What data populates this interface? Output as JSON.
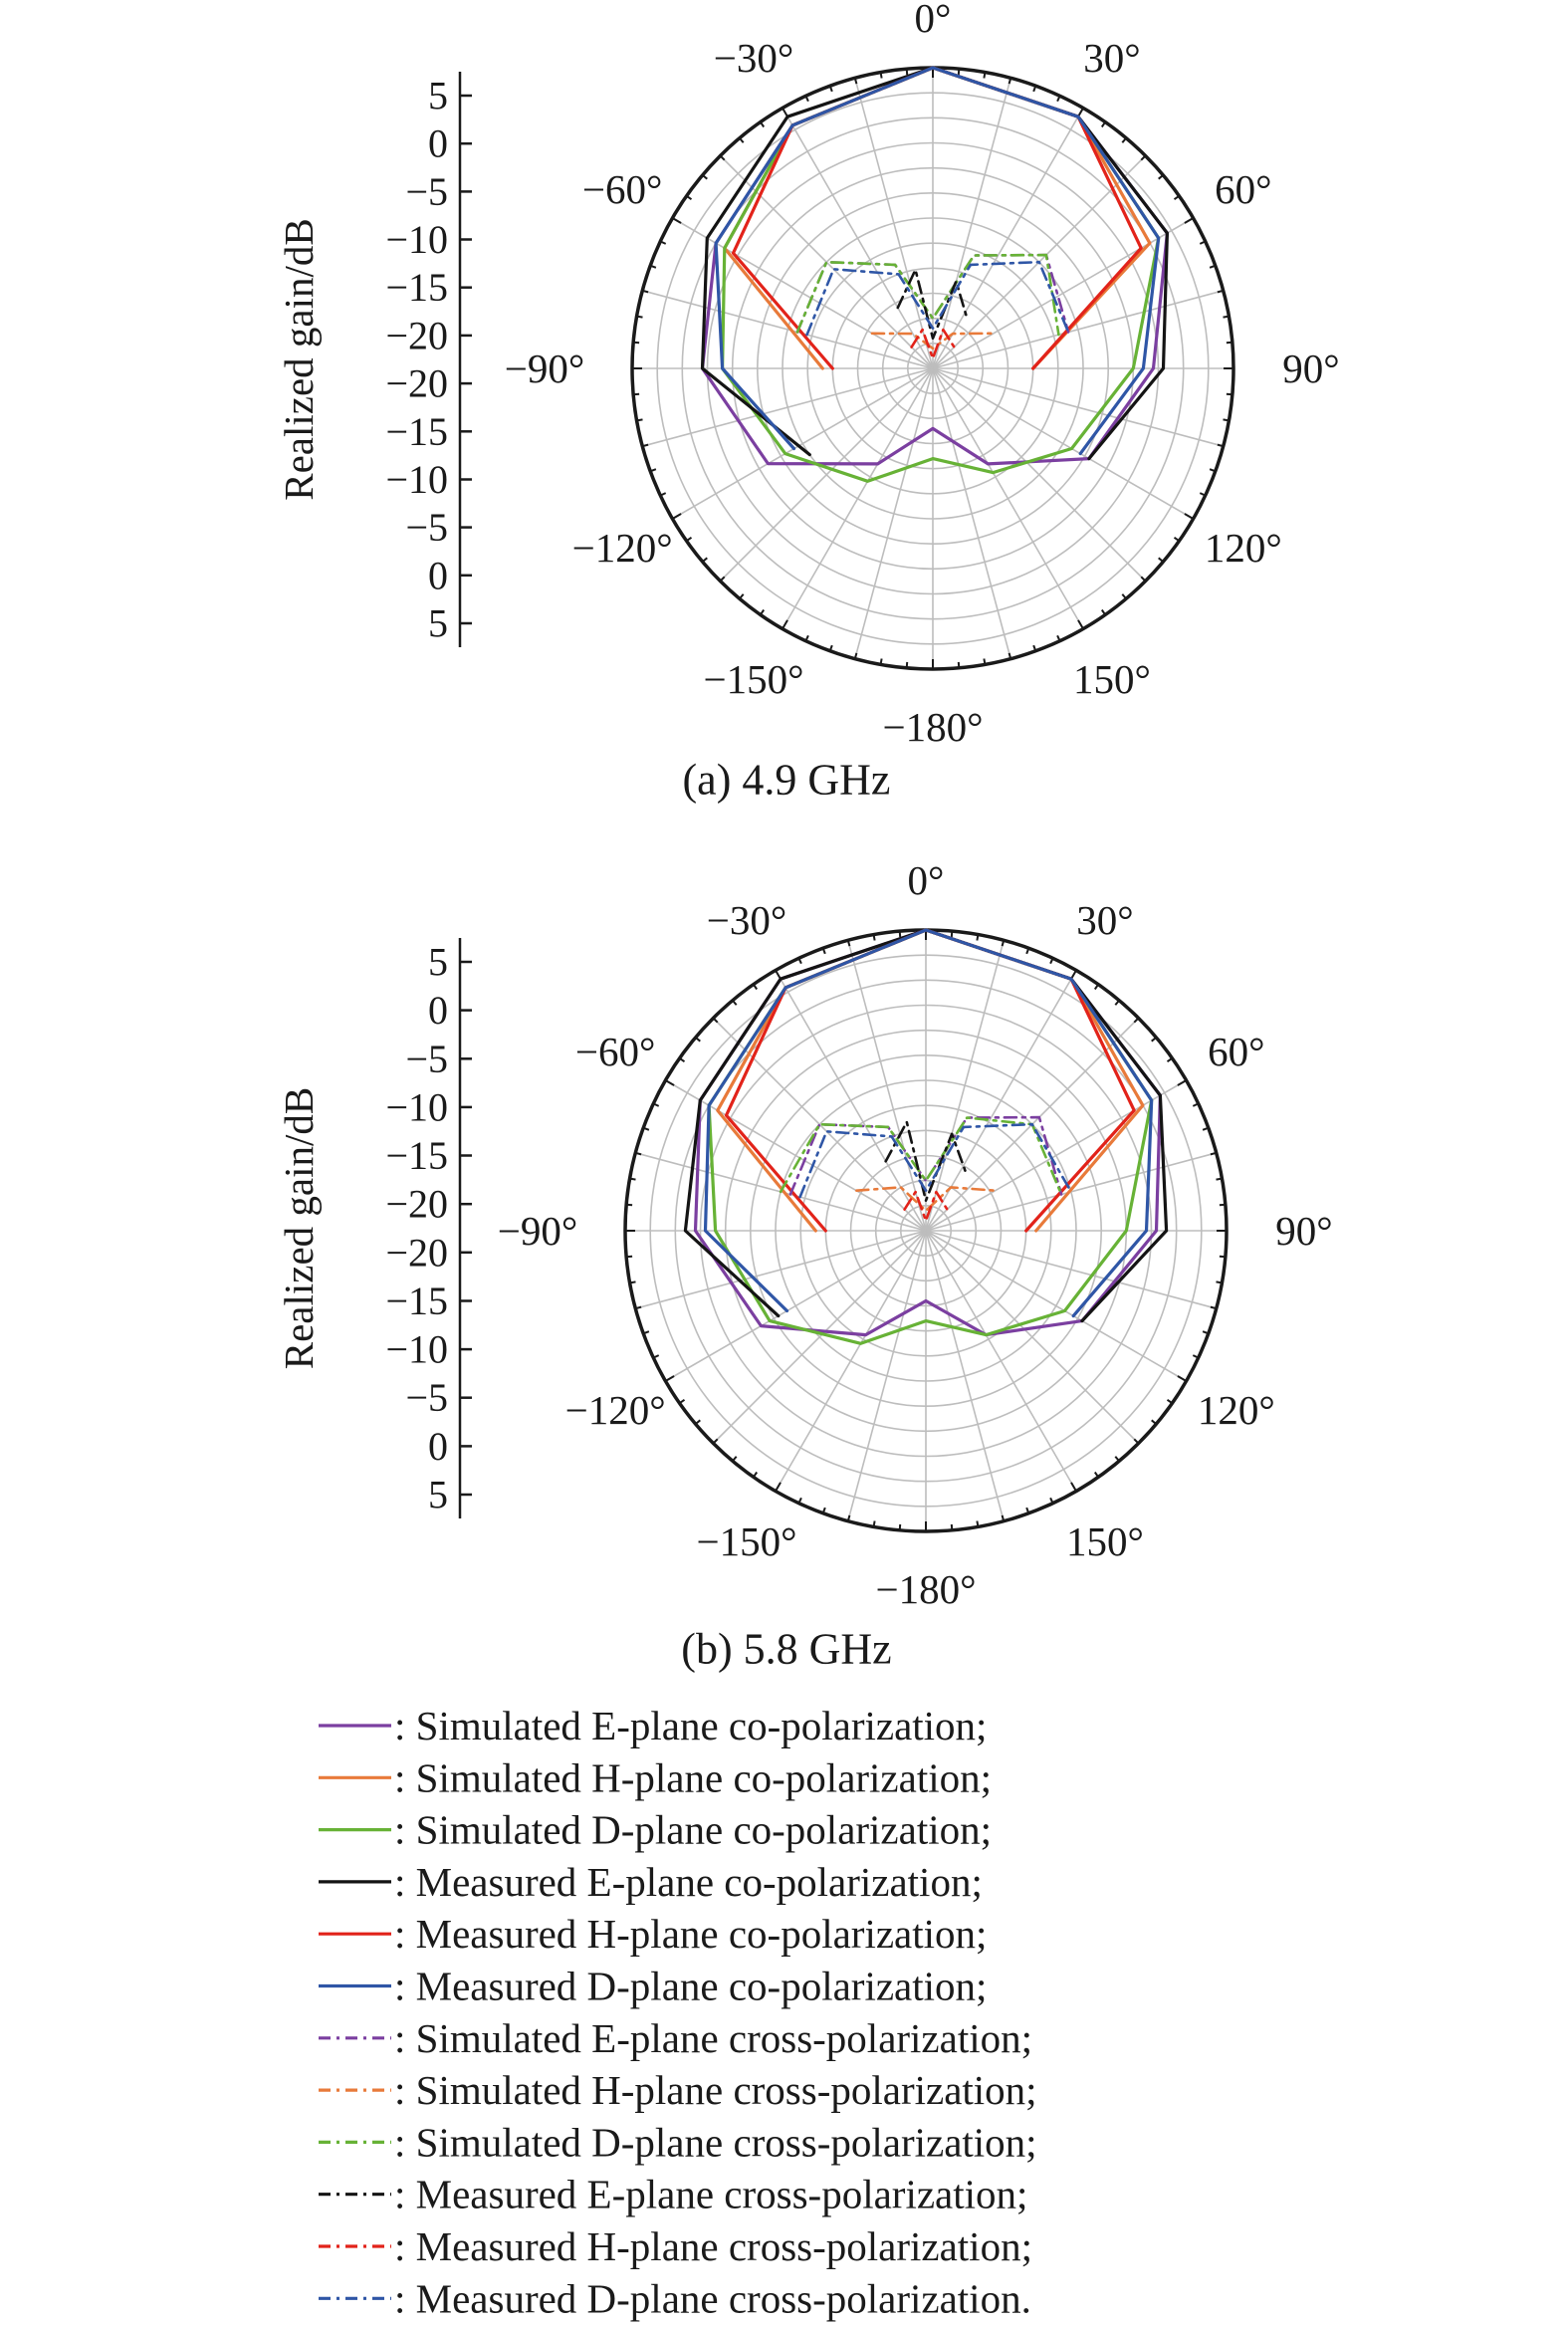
{
  "colors": {
    "purple": "#7b3fa0",
    "orange": "#e87a3a",
    "green": "#67b236",
    "black": "#141414",
    "red": "#e2231a",
    "blue": "#2f56a6",
    "grid": "#bdbdbd",
    "axis": "#1a1a1a"
  },
  "chart_data": [
    {
      "type": "polar",
      "caption": "(a) 4.9 GHz",
      "ylabel": "Realized gain/dB",
      "radial_range": [
        -25,
        5
      ],
      "radial_ticks": [
        "5",
        "0",
        "−5",
        "−10",
        "−15",
        "−20",
        "−20",
        "−15",
        "−10",
        "−5",
        "0",
        "5"
      ],
      "angle_labels": [
        {
          "deg": 0,
          "label": "0°"
        },
        {
          "deg": 30,
          "label": "30°"
        },
        {
          "deg": 60,
          "label": "60°"
        },
        {
          "deg": 90,
          "label": "90°"
        },
        {
          "deg": 120,
          "label": "120°"
        },
        {
          "deg": 150,
          "label": "150°"
        },
        {
          "deg": 180,
          "label": "−180°"
        },
        {
          "deg": -150,
          "label": "−150°"
        },
        {
          "deg": -120,
          "label": "−120°"
        },
        {
          "deg": -90,
          "label": "−90°"
        },
        {
          "deg": -60,
          "label": "−60°"
        },
        {
          "deg": -30,
          "label": "−30°"
        }
      ],
      "series": [
        {
          "color": "purple",
          "dash": false,
          "points": [
            [
              -180,
              -19
            ],
            [
              -150,
              -14
            ],
            [
              -120,
              -6
            ],
            [
              -90,
              -2
            ],
            [
              -60,
              0
            ],
            [
              -30,
              3
            ],
            [
              0,
              5
            ],
            [
              30,
              4
            ],
            [
              60,
              2
            ],
            [
              90,
              -3
            ],
            [
              120,
              -7
            ],
            [
              150,
              -14
            ],
            [
              180,
              -19
            ]
          ]
        },
        {
          "color": "orange",
          "dash": false,
          "points": [
            [
              -90,
              -14
            ],
            [
              -60,
              -1
            ],
            [
              -30,
              3
            ],
            [
              0,
              5
            ],
            [
              30,
              4
            ],
            [
              60,
              0
            ],
            [
              90,
              -15
            ]
          ]
        },
        {
          "color": "green",
          "dash": false,
          "points": [
            [
              -180,
              -16
            ],
            [
              -150,
              -12
            ],
            [
              -120,
              -8
            ],
            [
              -90,
              -4
            ],
            [
              -60,
              -1
            ],
            [
              -30,
              3
            ],
            [
              0,
              5
            ],
            [
              30,
              4
            ],
            [
              60,
              1
            ],
            [
              90,
              -5
            ],
            [
              120,
              -9
            ],
            [
              150,
              -13
            ],
            [
              180,
              -16
            ]
          ]
        },
        {
          "color": "black",
          "dash": false,
          "points": [
            [
              -125,
              -10
            ],
            [
              -90,
              -2
            ],
            [
              -60,
              1
            ],
            [
              -30,
              4
            ],
            [
              0,
              5
            ],
            [
              30,
              4
            ],
            [
              60,
              2
            ],
            [
              90,
              -2
            ],
            [
              120,
              -7
            ]
          ]
        },
        {
          "color": "red",
          "dash": false,
          "points": [
            [
              -90,
              -15
            ],
            [
              -60,
              -2
            ],
            [
              -30,
              3
            ],
            [
              0,
              5
            ],
            [
              30,
              4
            ],
            [
              60,
              -1
            ],
            [
              90,
              -15
            ]
          ]
        },
        {
          "color": "blue",
          "dash": false,
          "points": [
            [
              -120,
              -9
            ],
            [
              -90,
              -4
            ],
            [
              -60,
              0
            ],
            [
              -30,
              3
            ],
            [
              0,
              5
            ],
            [
              30,
              4
            ],
            [
              60,
              1
            ],
            [
              90,
              -4
            ],
            [
              120,
              -8
            ]
          ]
        },
        {
          "color": "purple",
          "dash": true,
          "points": [
            [
              -75,
              -11
            ],
            [
              -45,
              -10
            ],
            [
              -20,
              -14
            ],
            [
              0,
              -20
            ],
            [
              20,
              -13
            ],
            [
              45,
              -9
            ],
            [
              75,
              -11
            ]
          ]
        },
        {
          "color": "orange",
          "dash": true,
          "points": [
            [
              -60,
              -18
            ],
            [
              -30,
              -21
            ],
            [
              0,
              -23
            ],
            [
              30,
              -21
            ],
            [
              60,
              -18
            ]
          ]
        },
        {
          "color": "green",
          "dash": true,
          "points": [
            [
              -75,
              -11
            ],
            [
              -45,
              -10
            ],
            [
              -20,
              -14
            ],
            [
              0,
              -20
            ],
            [
              20,
              -13
            ],
            [
              45,
              -9
            ],
            [
              75,
              -12
            ]
          ]
        },
        {
          "color": "black",
          "dash": true,
          "points": [
            [
              -30,
              -18
            ],
            [
              -10,
              -15
            ],
            [
              0,
              -22
            ],
            [
              15,
              -16
            ],
            [
              35,
              -19
            ]
          ]
        },
        {
          "color": "red",
          "dash": true,
          "points": [
            [
              -45,
              -22
            ],
            [
              -15,
              -21
            ],
            [
              0,
              -24
            ],
            [
              15,
              -21
            ],
            [
              45,
              -22
            ]
          ]
        },
        {
          "color": "blue",
          "dash": true,
          "points": [
            [
              -75,
              -12
            ],
            [
              -45,
              -11
            ],
            [
              -20,
              -15
            ],
            [
              0,
              -21
            ],
            [
              20,
              -14
            ],
            [
              45,
              -10
            ],
            [
              75,
              -11
            ]
          ]
        }
      ]
    },
    {
      "type": "polar",
      "caption": "(b) 5.8 GHz",
      "ylabel": "Realized gain/dB",
      "radial_range": [
        -25,
        5
      ],
      "radial_ticks": [
        "5",
        "0",
        "−5",
        "−10",
        "−15",
        "−20",
        "−20",
        "−15",
        "−10",
        "−5",
        "0",
        "5"
      ],
      "angle_labels": [
        {
          "deg": 0,
          "label": "0°"
        },
        {
          "deg": 30,
          "label": "30°"
        },
        {
          "deg": 60,
          "label": "60°"
        },
        {
          "deg": 90,
          "label": "90°"
        },
        {
          "deg": 120,
          "label": "120°"
        },
        {
          "deg": 150,
          "label": "150°"
        },
        {
          "deg": 180,
          "label": "−180°"
        },
        {
          "deg": -150,
          "label": "−150°"
        },
        {
          "deg": -120,
          "label": "−120°"
        },
        {
          "deg": -90,
          "label": "−90°"
        },
        {
          "deg": -60,
          "label": "−60°"
        },
        {
          "deg": -30,
          "label": "−30°"
        }
      ],
      "series": [
        {
          "color": "purple",
          "dash": false,
          "points": [
            [
              -180,
              -18
            ],
            [
              -150,
              -13
            ],
            [
              -120,
              -6
            ],
            [
              -90,
              -2
            ],
            [
              -60,
              1
            ],
            [
              -30,
              4
            ],
            [
              0,
              5
            ],
            [
              30,
              4
            ],
            [
              60,
              2
            ],
            [
              90,
              -2
            ],
            [
              120,
              -7
            ],
            [
              150,
              -13
            ],
            [
              180,
              -18
            ]
          ]
        },
        {
          "color": "orange",
          "dash": false,
          "points": [
            [
              -90,
              -14
            ],
            [
              -60,
              -1
            ],
            [
              -30,
              3
            ],
            [
              0,
              5
            ],
            [
              30,
              4
            ],
            [
              60,
              0
            ],
            [
              90,
              -14
            ]
          ]
        },
        {
          "color": "green",
          "dash": false,
          "points": [
            [
              -180,
              -16
            ],
            [
              -150,
              -12
            ],
            [
              -120,
              -7
            ],
            [
              -90,
              -4
            ],
            [
              -60,
              0
            ],
            [
              -30,
              3
            ],
            [
              0,
              5
            ],
            [
              30,
              4
            ],
            [
              60,
              1
            ],
            [
              90,
              -5
            ],
            [
              120,
              -9
            ],
            [
              150,
              -13
            ],
            [
              180,
              -16
            ]
          ]
        },
        {
          "color": "black",
          "dash": false,
          "points": [
            [
              -120,
              -8
            ],
            [
              -90,
              -1
            ],
            [
              -60,
              1
            ],
            [
              -30,
              4
            ],
            [
              0,
              5
            ],
            [
              30,
              4
            ],
            [
              60,
              2
            ],
            [
              90,
              -1
            ],
            [
              120,
              -7
            ]
          ]
        },
        {
          "color": "red",
          "dash": false,
          "points": [
            [
              -90,
              -15
            ],
            [
              -60,
              -2
            ],
            [
              -30,
              3
            ],
            [
              0,
              5
            ],
            [
              30,
              4
            ],
            [
              60,
              -1
            ],
            [
              90,
              -15
            ]
          ]
        },
        {
          "color": "blue",
          "dash": false,
          "points": [
            [
              -120,
              -9
            ],
            [
              -90,
              -3
            ],
            [
              -60,
              0
            ],
            [
              -30,
              3
            ],
            [
              0,
              5
            ],
            [
              30,
              4
            ],
            [
              60,
              1
            ],
            [
              90,
              -3
            ],
            [
              120,
              -8
            ]
          ]
        },
        {
          "color": "purple",
          "dash": true,
          "points": [
            [
              -75,
              -11
            ],
            [
              -45,
              -10
            ],
            [
              -20,
              -14
            ],
            [
              0,
              -20
            ],
            [
              20,
              -13
            ],
            [
              45,
              -9
            ],
            [
              75,
              -11
            ]
          ]
        },
        {
          "color": "orange",
          "dash": true,
          "points": [
            [
              -60,
              -17
            ],
            [
              -30,
              -20
            ],
            [
              0,
              -23
            ],
            [
              30,
              -20
            ],
            [
              60,
              -17
            ]
          ]
        },
        {
          "color": "green",
          "dash": true,
          "points": [
            [
              -75,
              -10
            ],
            [
              -45,
              -10
            ],
            [
              -20,
              -14
            ],
            [
              0,
              -20
            ],
            [
              20,
              -13
            ],
            [
              45,
              -10
            ],
            [
              75,
              -11
            ]
          ]
        },
        {
          "color": "black",
          "dash": true,
          "points": [
            [
              -30,
              -17
            ],
            [
              -10,
              -14
            ],
            [
              0,
              -22
            ],
            [
              15,
              -15
            ],
            [
              35,
              -18
            ]
          ]
        },
        {
          "color": "red",
          "dash": true,
          "points": [
            [
              -45,
              -22
            ],
            [
              -15,
              -21
            ],
            [
              0,
              -24
            ],
            [
              15,
              -21
            ],
            [
              45,
              -22
            ]
          ]
        },
        {
          "color": "blue",
          "dash": true,
          "points": [
            [
              -75,
              -12
            ],
            [
              -45,
              -11
            ],
            [
              -20,
              -15
            ],
            [
              0,
              -21
            ],
            [
              20,
              -14
            ],
            [
              45,
              -10
            ],
            [
              75,
              -10
            ]
          ]
        }
      ]
    }
  ],
  "legend": [
    {
      "color": "purple",
      "dash": false,
      "label": ": Simulated E-plane co-polarization;"
    },
    {
      "color": "orange",
      "dash": false,
      "label": ": Simulated H-plane co-polarization;"
    },
    {
      "color": "green",
      "dash": false,
      "label": ": Simulated D-plane co-polarization;"
    },
    {
      "color": "black",
      "dash": false,
      "label": ": Measured E-plane co-polarization;"
    },
    {
      "color": "red",
      "dash": false,
      "label": ": Measured H-plane co-polarization;"
    },
    {
      "color": "blue",
      "dash": false,
      "label": ": Measured D-plane co-polarization;"
    },
    {
      "color": "purple",
      "dash": true,
      "label": ": Simulated E-plane cross-polarization;"
    },
    {
      "color": "orange",
      "dash": true,
      "label": ": Simulated H-plane cross-polarization;"
    },
    {
      "color": "green",
      "dash": true,
      "label": ": Simulated D-plane cross-polarization;"
    },
    {
      "color": "black",
      "dash": true,
      "label": ": Measured E-plane cross-polarization;"
    },
    {
      "color": "red",
      "dash": true,
      "label": ": Measured H-plane cross-polarization;"
    },
    {
      "color": "blue",
      "dash": true,
      "label": ": Measured D-plane cross-polarization."
    }
  ]
}
